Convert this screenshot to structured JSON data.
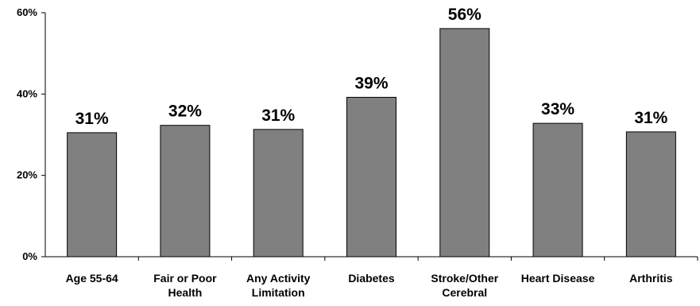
{
  "chart_data": {
    "type": "bar",
    "categories": [
      [
        "Age 55-64"
      ],
      [
        "Fair or Poor",
        "Health"
      ],
      [
        "Any Activity",
        "Limitation"
      ],
      [
        "Diabetes"
      ],
      [
        "Stroke/Other",
        "Cerebral"
      ],
      [
        "Heart Disease"
      ],
      [
        "Arthritis"
      ]
    ],
    "values": [
      30.5,
      32.3,
      31.3,
      39.2,
      56.1,
      32.8,
      30.7
    ],
    "data_labels": [
      "31%",
      "32%",
      "31%",
      "39%",
      "56%",
      "33%",
      "31%"
    ],
    "y_ticks": [
      {
        "value": 0,
        "label": "0%"
      },
      {
        "value": 20,
        "label": "20%"
      },
      {
        "value": 40,
        "label": "40%"
      },
      {
        "value": 60,
        "label": "60%"
      }
    ],
    "ylim": [
      0,
      60
    ],
    "grid": false,
    "legend": false,
    "colors": {
      "bar_fill": "#808080",
      "bar_stroke": "#000000",
      "axis": "#000000"
    }
  }
}
